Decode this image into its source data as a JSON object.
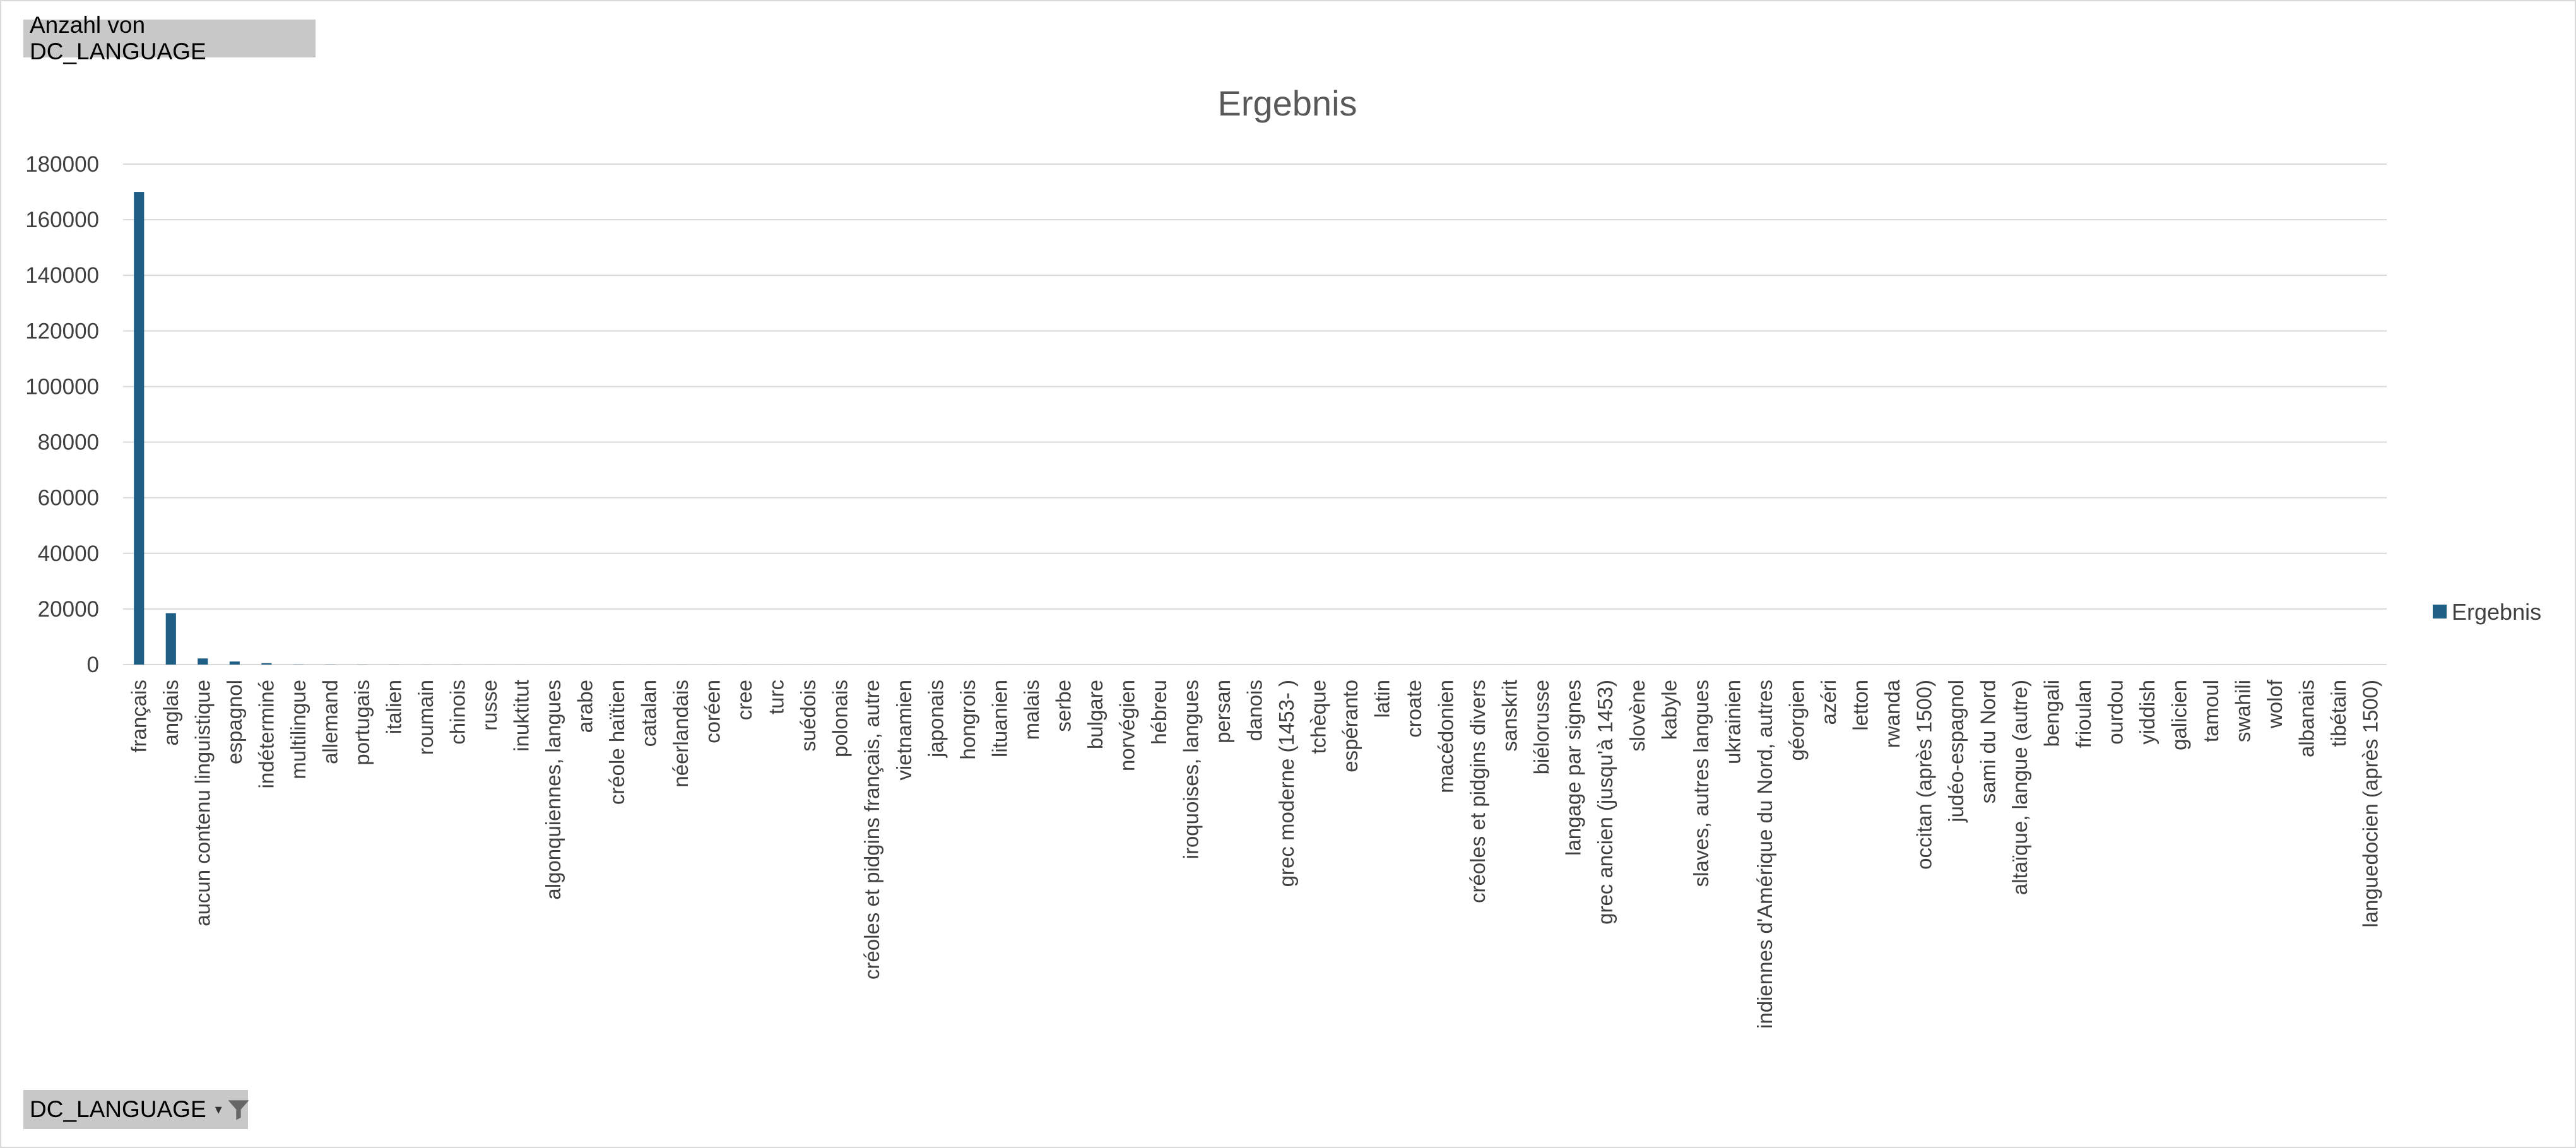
{
  "pivot": {
    "value_field": "Anzahl von DC_LANGUAGE",
    "row_field": "DC_LANGUAGE",
    "filter_icon": "filter-funnel-icon"
  },
  "colors": {
    "bar": "#1f5f86",
    "grid": "#d9d9d9"
  },
  "chart_data": {
    "type": "bar",
    "title": "Ergebnis",
    "ylim": [
      0,
      180000
    ],
    "yticks": [
      0,
      20000,
      40000,
      60000,
      80000,
      100000,
      120000,
      140000,
      160000,
      180000
    ],
    "grid": true,
    "legend": "right",
    "categories": [
      "français",
      "anglais",
      "aucun contenu linguistique",
      "espagnol",
      "indéterminé",
      "multilingue",
      "allemand",
      "portugais",
      "italien",
      "roumain",
      "chinois",
      "russe",
      "inuktitut",
      "algonquiennes, langues",
      "arabe",
      "créole haïtien",
      "catalan",
      "néerlandais",
      "coréen",
      "cree",
      "turc",
      "suédois",
      "polonais",
      "créoles et pidgins français, autre",
      "vietnamien",
      "japonais",
      "hongrois",
      "lituanien",
      "malais",
      "serbe",
      "bulgare",
      "norvégien",
      "hébreu",
      "iroquoises, langues",
      "persan",
      "danois",
      "grec moderne (1453- )",
      "tchèque",
      "espéranto",
      "latin",
      "croate",
      "macédonien",
      "créoles et pidgins divers",
      "sanskrit",
      "biélorusse",
      "langage par signes",
      "grec ancien (jusqu'à 1453)",
      "slovène",
      "kabyle",
      "slaves, autres langues",
      "ukrainien",
      "indiennes d'Amérique du Nord, autres",
      "géorgien",
      "azéri",
      "letton",
      "rwanda",
      "occitan (après 1500)",
      "judéo-espagnol",
      "sami du Nord",
      "altaïque, langue (autre)",
      "bengali",
      "frioulan",
      "ourdou",
      "yiddish",
      "galicien",
      "tamoul",
      "swahili",
      "wolof",
      "albanais",
      "tibétain",
      "languedocien (après 1500)"
    ],
    "series": [
      {
        "name": "Ergebnis",
        "values": [
          170000,
          18500,
          2200,
          1100,
          500,
          60,
          50,
          40,
          30,
          20,
          20,
          15,
          15,
          10,
          10,
          10,
          8,
          8,
          6,
          6,
          5,
          5,
          5,
          4,
          4,
          4,
          3,
          3,
          3,
          3,
          3,
          3,
          2,
          2,
          2,
          2,
          2,
          2,
          2,
          2,
          2,
          2,
          2,
          1,
          1,
          1,
          1,
          1,
          1,
          1,
          1,
          1,
          1,
          1,
          1,
          1,
          1,
          1,
          1,
          1,
          1,
          1,
          1,
          1,
          1,
          1,
          1,
          1,
          1,
          1,
          1
        ]
      }
    ]
  }
}
